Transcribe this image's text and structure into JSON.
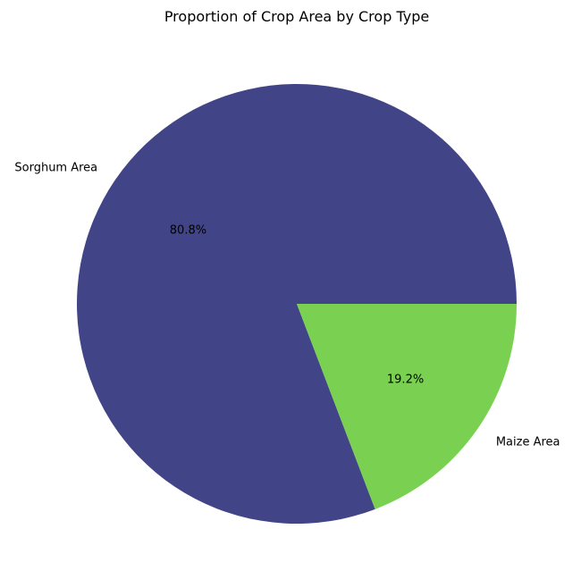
{
  "chart_data": {
    "type": "pie",
    "title": "Proportion of Crop Area by Crop Type",
    "slices": [
      {
        "label": "Sorghum Area",
        "value": 80.8,
        "pct_label": "80.8%",
        "color": "#414487"
      },
      {
        "label": "Maize Area",
        "value": 19.2,
        "pct_label": "19.2%",
        "color": "#7ad151"
      }
    ],
    "start_angle_deg": 0,
    "direction": "counterclockwise"
  }
}
